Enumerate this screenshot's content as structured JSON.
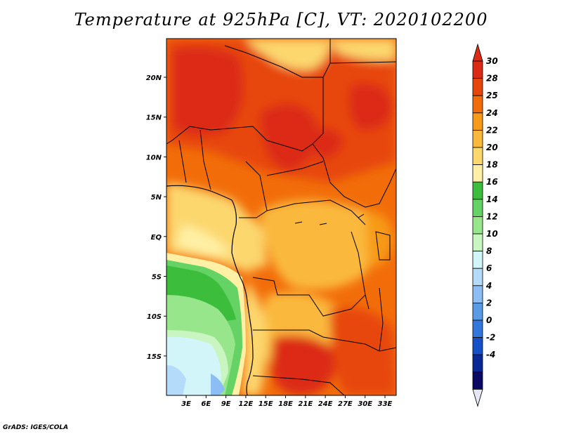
{
  "title": "Temperature at 925hPa [C], VT: 2020102200",
  "credit": "GrADS: IGES/COLA",
  "y_axis_labels": [
    "20N",
    "15N",
    "10N",
    "5N",
    "EQ",
    "5S",
    "10S",
    "15S"
  ],
  "x_axis_labels": [
    "3E",
    "6E",
    "9E",
    "12E",
    "15E",
    "18E",
    "21E",
    "24E",
    "27E",
    "30E",
    "33E"
  ],
  "colorbar": {
    "labels": [
      "30",
      "28",
      "25",
      "24",
      "22",
      "20",
      "18",
      "16",
      "14",
      "12",
      "10",
      "8",
      "6",
      "4",
      "2",
      "0",
      "-2",
      "-4"
    ],
    "colors": [
      "#dc2a14",
      "#e7460a",
      "#f26d0a",
      "#f79a19",
      "#fab93c",
      "#fcd76e",
      "#fff0a5",
      "#3cbe3c",
      "#64d264",
      "#98e68c",
      "#c8f5c0",
      "#d2f5fa",
      "#b4dcfa",
      "#8cbef5",
      "#5a9be6",
      "#3278dc",
      "#1450c8",
      "#0a2896",
      "#0a0a64"
    ],
    "over_color": "#dc2a14",
    "under_color": "#e6e6f5"
  }
}
